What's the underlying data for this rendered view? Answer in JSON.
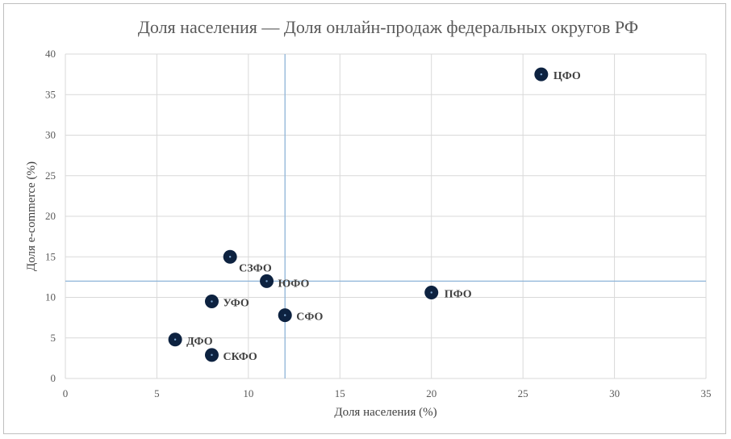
{
  "chart_data": {
    "type": "scatter",
    "title": "Доля населения — Доля онлайн-продаж федеральных округов РФ",
    "xlabel": "Доля населения (%)",
    "ylabel": "Доля e-commerce (%)",
    "xlim": [
      0,
      35
    ],
    "ylim": [
      0,
      40
    ],
    "xticks": [
      0,
      5,
      10,
      15,
      20,
      25,
      30,
      35
    ],
    "yticks": [
      0,
      5,
      10,
      15,
      20,
      25,
      30,
      35,
      40
    ],
    "grid": true,
    "reference_lines": {
      "x": 12,
      "y": 12
    },
    "marker_color": "#0d2240",
    "reference_line_color": "#8eb4d8",
    "points": [
      {
        "label": "ЦФО",
        "x": 26,
        "y": 37.5
      },
      {
        "label": "СЗФО",
        "x": 9,
        "y": 15
      },
      {
        "label": "ЮФО",
        "x": 11,
        "y": 12
      },
      {
        "label": "ПФО",
        "x": 20,
        "y": 10.6
      },
      {
        "label": "УФО",
        "x": 8,
        "y": 9.5
      },
      {
        "label": "СФО",
        "x": 12,
        "y": 7.8
      },
      {
        "label": "ДФО",
        "x": 6,
        "y": 4.8
      },
      {
        "label": "СКФО",
        "x": 8,
        "y": 2.9
      }
    ]
  }
}
